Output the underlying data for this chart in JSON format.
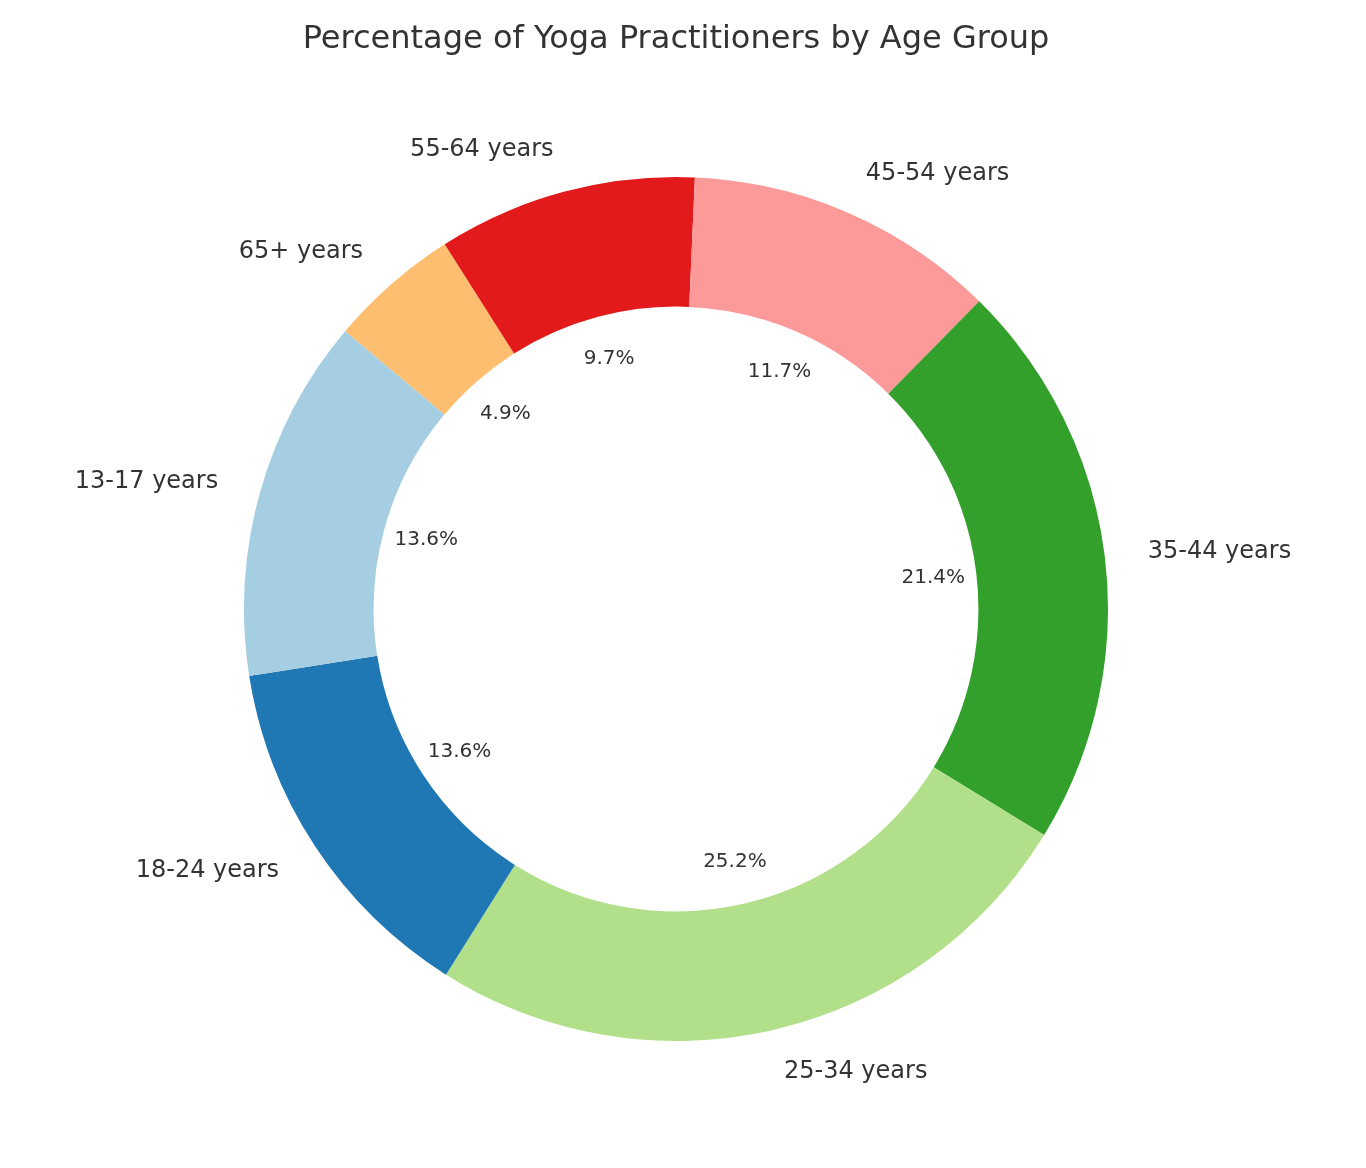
{
  "chart_data": {
    "type": "donut",
    "title": "Percentage of Yoga Practitioners by Age Group",
    "categories": [
      "65+ years",
      "55-64 years",
      "45-54 years",
      "35-44 years",
      "25-34 years",
      "18-24 years",
      "13-17 years"
    ],
    "values": [
      4.9,
      9.7,
      11.7,
      21.4,
      25.2,
      13.6,
      13.6
    ],
    "colors": [
      "#fdbf6f",
      "#e31a1c",
      "#fb9a99",
      "#33a02c",
      "#b2df8a",
      "#1f78b4",
      "#a6cee3"
    ],
    "value_labels": [
      "4.9%",
      "9.7%",
      "11.7%",
      "21.4%",
      "25.2%",
      "13.6%",
      "13.6%"
    ],
    "legend": false
  }
}
